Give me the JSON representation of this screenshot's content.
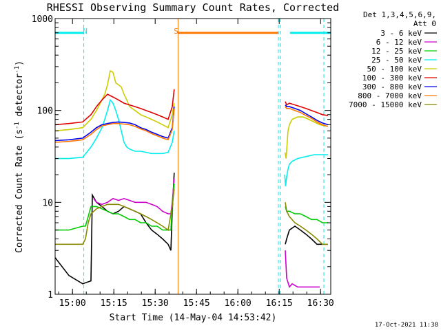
{
  "chart_data": {
    "type": "line",
    "title": "RHESSI Observing Summary Count Rates, Corrected",
    "xlabel": "Start Time (14-May-04 14:53:42)",
    "ylabel_main": "Corrected Count Rate (s",
    "ylabel_sup1": "-1",
    "ylabel_mid": " detector",
    "ylabel_sup2": "-1",
    "ylabel_end": ")",
    "y_scale": "log",
    "ylim": [
      1,
      1000
    ],
    "xlim_minutes": [
      0,
      100
    ],
    "x_ticks": [
      {
        "label": "15:00",
        "m": 6.3
      },
      {
        "label": "15:15",
        "m": 21.3
      },
      {
        "label": "15:30",
        "m": 36.3
      },
      {
        "label": "15:45",
        "m": 51.3
      },
      {
        "label": "16:00",
        "m": 66.3
      },
      {
        "label": "16:15",
        "m": 81.3
      },
      {
        "label": "16:30",
        "m": 96.3
      }
    ],
    "y_ticks": [
      {
        "label": "1",
        "v": 1
      },
      {
        "label": "10",
        "v": 10
      },
      {
        "label": "100",
        "v": 100
      },
      {
        "label": "1000",
        "v": 1000
      }
    ],
    "legend_header": [
      "Det 1,3,4,5,6,9,",
      "Att 0"
    ],
    "series": [
      {
        "name": "3 - 6 keV",
        "color": "#000000",
        "x": [
          0,
          5,
          10,
          13,
          13.5,
          15,
          17,
          19,
          21,
          23,
          25,
          27,
          29,
          31,
          33,
          35,
          37,
          39,
          41,
          42,
          42.5,
          43.2,
          83,
          83.5,
          84,
          85,
          87,
          89,
          91,
          93,
          95,
          97,
          99
        ],
        "y": [
          2.5,
          1.6,
          1.3,
          1.4,
          12,
          10,
          9,
          8,
          7.5,
          8,
          9,
          8.5,
          8,
          7.5,
          6,
          5,
          4.5,
          4,
          3.5,
          3,
          8,
          21,
          null,
          3.5,
          4,
          5,
          5.5,
          5,
          4.5,
          4,
          3.5,
          3.5,
          3.5
        ]
      },
      {
        "name": "6 - 12 keV",
        "color": "#cc00cc",
        "x": [
          0,
          5,
          10,
          13,
          14,
          15,
          17,
          19,
          21,
          23,
          25,
          27,
          29,
          31,
          33,
          35,
          37,
          39,
          41,
          42,
          42.5,
          43.2,
          83,
          83.5,
          84,
          85,
          86,
          88,
          90,
          92,
          94,
          96
        ],
        "y": [
          null,
          null,
          null,
          null,
          11,
          10,
          9.5,
          10,
          11,
          10.5,
          11,
          10.5,
          10,
          10,
          10,
          9.5,
          9,
          8,
          7.5,
          7.5,
          10,
          18,
          null,
          3,
          1.5,
          1.2,
          1.3,
          1.2,
          1.2,
          1.2,
          1.2,
          1.2
        ]
      },
      {
        "name": "12 - 25 keV",
        "color": "#00cc00",
        "x": [
          0,
          5,
          10,
          11,
          12,
          13,
          15,
          17,
          19,
          21,
          23,
          25,
          27,
          29,
          31,
          33,
          35,
          37,
          39,
          41,
          42,
          42.5,
          43.2,
          83,
          83.5,
          84,
          85,
          87,
          89,
          91,
          93,
          95,
          97,
          99
        ],
        "y": [
          5,
          5,
          5.5,
          5.5,
          7,
          9,
          9,
          8.5,
          8,
          7.5,
          7.5,
          7,
          6.5,
          6.5,
          6,
          6,
          5.5,
          5.5,
          5,
          5,
          5,
          9,
          16,
          null,
          9,
          8,
          8,
          7.5,
          7.5,
          7,
          6.5,
          6.5,
          6,
          6
        ]
      },
      {
        "name": "25 - 50 keV",
        "color": "#00eeee",
        "x": [
          0,
          5,
          10,
          13,
          15,
          17,
          18,
          19,
          20,
          21,
          22,
          23,
          24,
          25,
          26,
          27,
          29,
          31,
          33,
          35,
          37,
          39,
          41,
          42.5,
          43.2,
          83,
          83.3,
          83.6,
          84,
          84.5,
          85,
          86,
          88,
          90,
          92,
          94,
          96,
          98,
          99
        ],
        "y": [
          30,
          30,
          31,
          40,
          50,
          65,
          80,
          100,
          130,
          120,
          100,
          80,
          60,
          45,
          40,
          38,
          36,
          36,
          35,
          34,
          34,
          34,
          35,
          45,
          60,
          null,
          20,
          15,
          19,
          23,
          26,
          28,
          30,
          31,
          32,
          33,
          33,
          33,
          33
        ]
      },
      {
        "name": "50 - 100 keV",
        "color": "#cccc00",
        "x": [
          0,
          5,
          10,
          13,
          15,
          17,
          18,
          19,
          20,
          21,
          22,
          23,
          24,
          25,
          26,
          27,
          29,
          31,
          33,
          35,
          37,
          39,
          41,
          42.5,
          43.2,
          83,
          83.4,
          83.8,
          84.5,
          85,
          86,
          88,
          90,
          92,
          94,
          96,
          98,
          99
        ],
        "y": [
          60,
          62,
          65,
          80,
          100,
          130,
          150,
          190,
          270,
          260,
          200,
          190,
          180,
          150,
          130,
          110,
          100,
          90,
          85,
          80,
          75,
          70,
          65,
          90,
          120,
          null,
          35,
          30,
          60,
          70,
          80,
          85,
          85,
          80,
          75,
          70,
          68,
          67
        ]
      },
      {
        "name": "100 - 300 keV",
        "color": "#e00000",
        "x": [
          0,
          5,
          10,
          13,
          15,
          17,
          19,
          21,
          23,
          25,
          27,
          29,
          31,
          33,
          35,
          37,
          39,
          41,
          42.5,
          43.2,
          83,
          83.5,
          84,
          85,
          87,
          89,
          91,
          93,
          95,
          97,
          99
        ],
        "y": [
          70,
          72,
          75,
          90,
          110,
          130,
          150,
          140,
          130,
          120,
          115,
          110,
          105,
          100,
          95,
          90,
          85,
          80,
          110,
          170,
          null,
          125,
          115,
          120,
          115,
          110,
          105,
          100,
          95,
          90,
          88
        ]
      },
      {
        "name": "300 - 800 keV",
        "color": "#0000ee",
        "x": [
          0,
          5,
          10,
          13,
          15,
          17,
          19,
          21,
          23,
          25,
          27,
          29,
          31,
          33,
          35,
          37,
          39,
          41,
          42.5,
          43.2,
          83,
          83.5,
          84,
          85,
          87,
          89,
          91,
          93,
          95,
          97,
          99
        ],
        "y": [
          47,
          48,
          50,
          58,
          65,
          70,
          72,
          74,
          75,
          74,
          73,
          70,
          65,
          62,
          58,
          55,
          52,
          50,
          65,
          110,
          null,
          115,
          110,
          110,
          105,
          100,
          92,
          85,
          78,
          73,
          70
        ]
      },
      {
        "name": "800 - 7000 keV",
        "color": "#ff7700",
        "x": [
          0,
          5,
          10,
          13,
          15,
          17,
          19,
          21,
          23,
          25,
          27,
          29,
          31,
          33,
          35,
          37,
          39,
          41,
          42.5,
          43.2,
          83,
          83.5,
          84,
          85,
          87,
          89,
          91,
          93,
          95,
          97,
          99
        ],
        "y": [
          45,
          46,
          48,
          55,
          62,
          68,
          70,
          72,
          72,
          71,
          70,
          67,
          63,
          60,
          56,
          53,
          50,
          48,
          62,
          105,
          null,
          110,
          105,
          105,
          100,
          95,
          88,
          82,
          75,
          70,
          67
        ]
      },
      {
        "name": "7000 - 15000 keV",
        "color": "#888800",
        "x": [
          0,
          5,
          10,
          11,
          12,
          13,
          15,
          17,
          19,
          21,
          23,
          25,
          27,
          29,
          31,
          33,
          35,
          37,
          39,
          41,
          42.5,
          43.2,
          83,
          83.5,
          84,
          85,
          87,
          89,
          91,
          93,
          95,
          97,
          99
        ],
        "y": [
          3.5,
          3.5,
          3.5,
          4,
          6,
          7.5,
          8.5,
          9,
          9.5,
          9.5,
          9.5,
          9,
          8.5,
          8,
          7.5,
          7,
          6.5,
          6,
          5.5,
          5,
          9,
          14,
          null,
          10,
          8,
          7,
          6,
          5.5,
          5,
          4.5,
          4,
          3.5,
          3.5
        ]
      }
    ],
    "attenuator_level": 700,
    "attenuator_segments": [
      {
        "color": "#00eeee",
        "x": [
          0,
          10.4
        ]
      },
      {
        "color": "#ff7700",
        "x": [
          44.6,
          81.0
        ]
      },
      {
        "color": "#00eeee",
        "x": [
          85.2,
          100
        ]
      }
    ],
    "markers": [
      {
        "label": "N",
        "color": "#00eeee",
        "m": 10.9
      },
      {
        "label": "S",
        "color": "#ff7700",
        "m": 43.9
      }
    ],
    "vlines": [
      {
        "color": "#00eeee",
        "m": 0,
        "style": "dashed"
      },
      {
        "color": "#00eeee",
        "m": 10.4,
        "style": "dashed"
      },
      {
        "color": "#ff7700",
        "m": 44.6,
        "style": "solid"
      },
      {
        "color": "#00eeee",
        "m": 81.0,
        "style": "dashed"
      },
      {
        "color": "#00eeee",
        "m": 81.8,
        "style": "dashed"
      },
      {
        "color": "#00eeee",
        "m": 97.5,
        "style": "dashed"
      }
    ],
    "timestamp": "17-Oct-2021 11:38"
  }
}
